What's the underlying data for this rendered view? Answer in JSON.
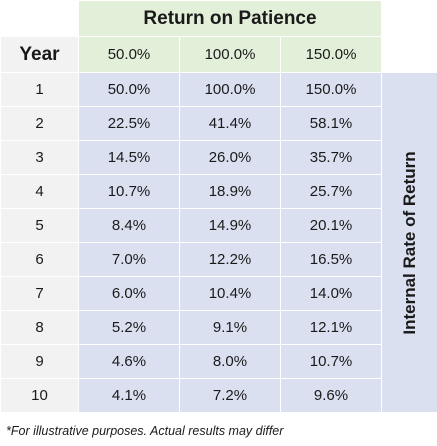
{
  "title": "Return on Patience",
  "year_header": "Year",
  "side_label": "Internal Rate of Return",
  "rate_headers": [
    "50.0%",
    "100.0%",
    "150.0%"
  ],
  "rows": [
    {
      "year": "1",
      "values": [
        "50.0%",
        "100.0%",
        "150.0%"
      ]
    },
    {
      "year": "2",
      "values": [
        "22.5%",
        "41.4%",
        "58.1%"
      ]
    },
    {
      "year": "3",
      "values": [
        "14.5%",
        "26.0%",
        "35.7%"
      ]
    },
    {
      "year": "4",
      "values": [
        "10.7%",
        "18.9%",
        "25.7%"
      ]
    },
    {
      "year": "5",
      "values": [
        "8.4%",
        "14.9%",
        "20.1%"
      ]
    },
    {
      "year": "6",
      "values": [
        "7.0%",
        "12.2%",
        "16.5%"
      ]
    },
    {
      "year": "7",
      "values": [
        "6.0%",
        "10.4%",
        "14.0%"
      ]
    },
    {
      "year": "8",
      "values": [
        "5.2%",
        "9.1%",
        "12.1%"
      ]
    },
    {
      "year": "9",
      "values": [
        "4.6%",
        "8.0%",
        "10.7%"
      ]
    },
    {
      "year": "10",
      "values": [
        "4.1%",
        "7.2%",
        "9.6%"
      ]
    }
  ],
  "footnote": "*For illustrative purposes. Actual results may differ",
  "colors": {
    "header_green": "#e2efd9",
    "year_gray": "#f2f2f2",
    "value_lavender": "#dbe0f1"
  }
}
